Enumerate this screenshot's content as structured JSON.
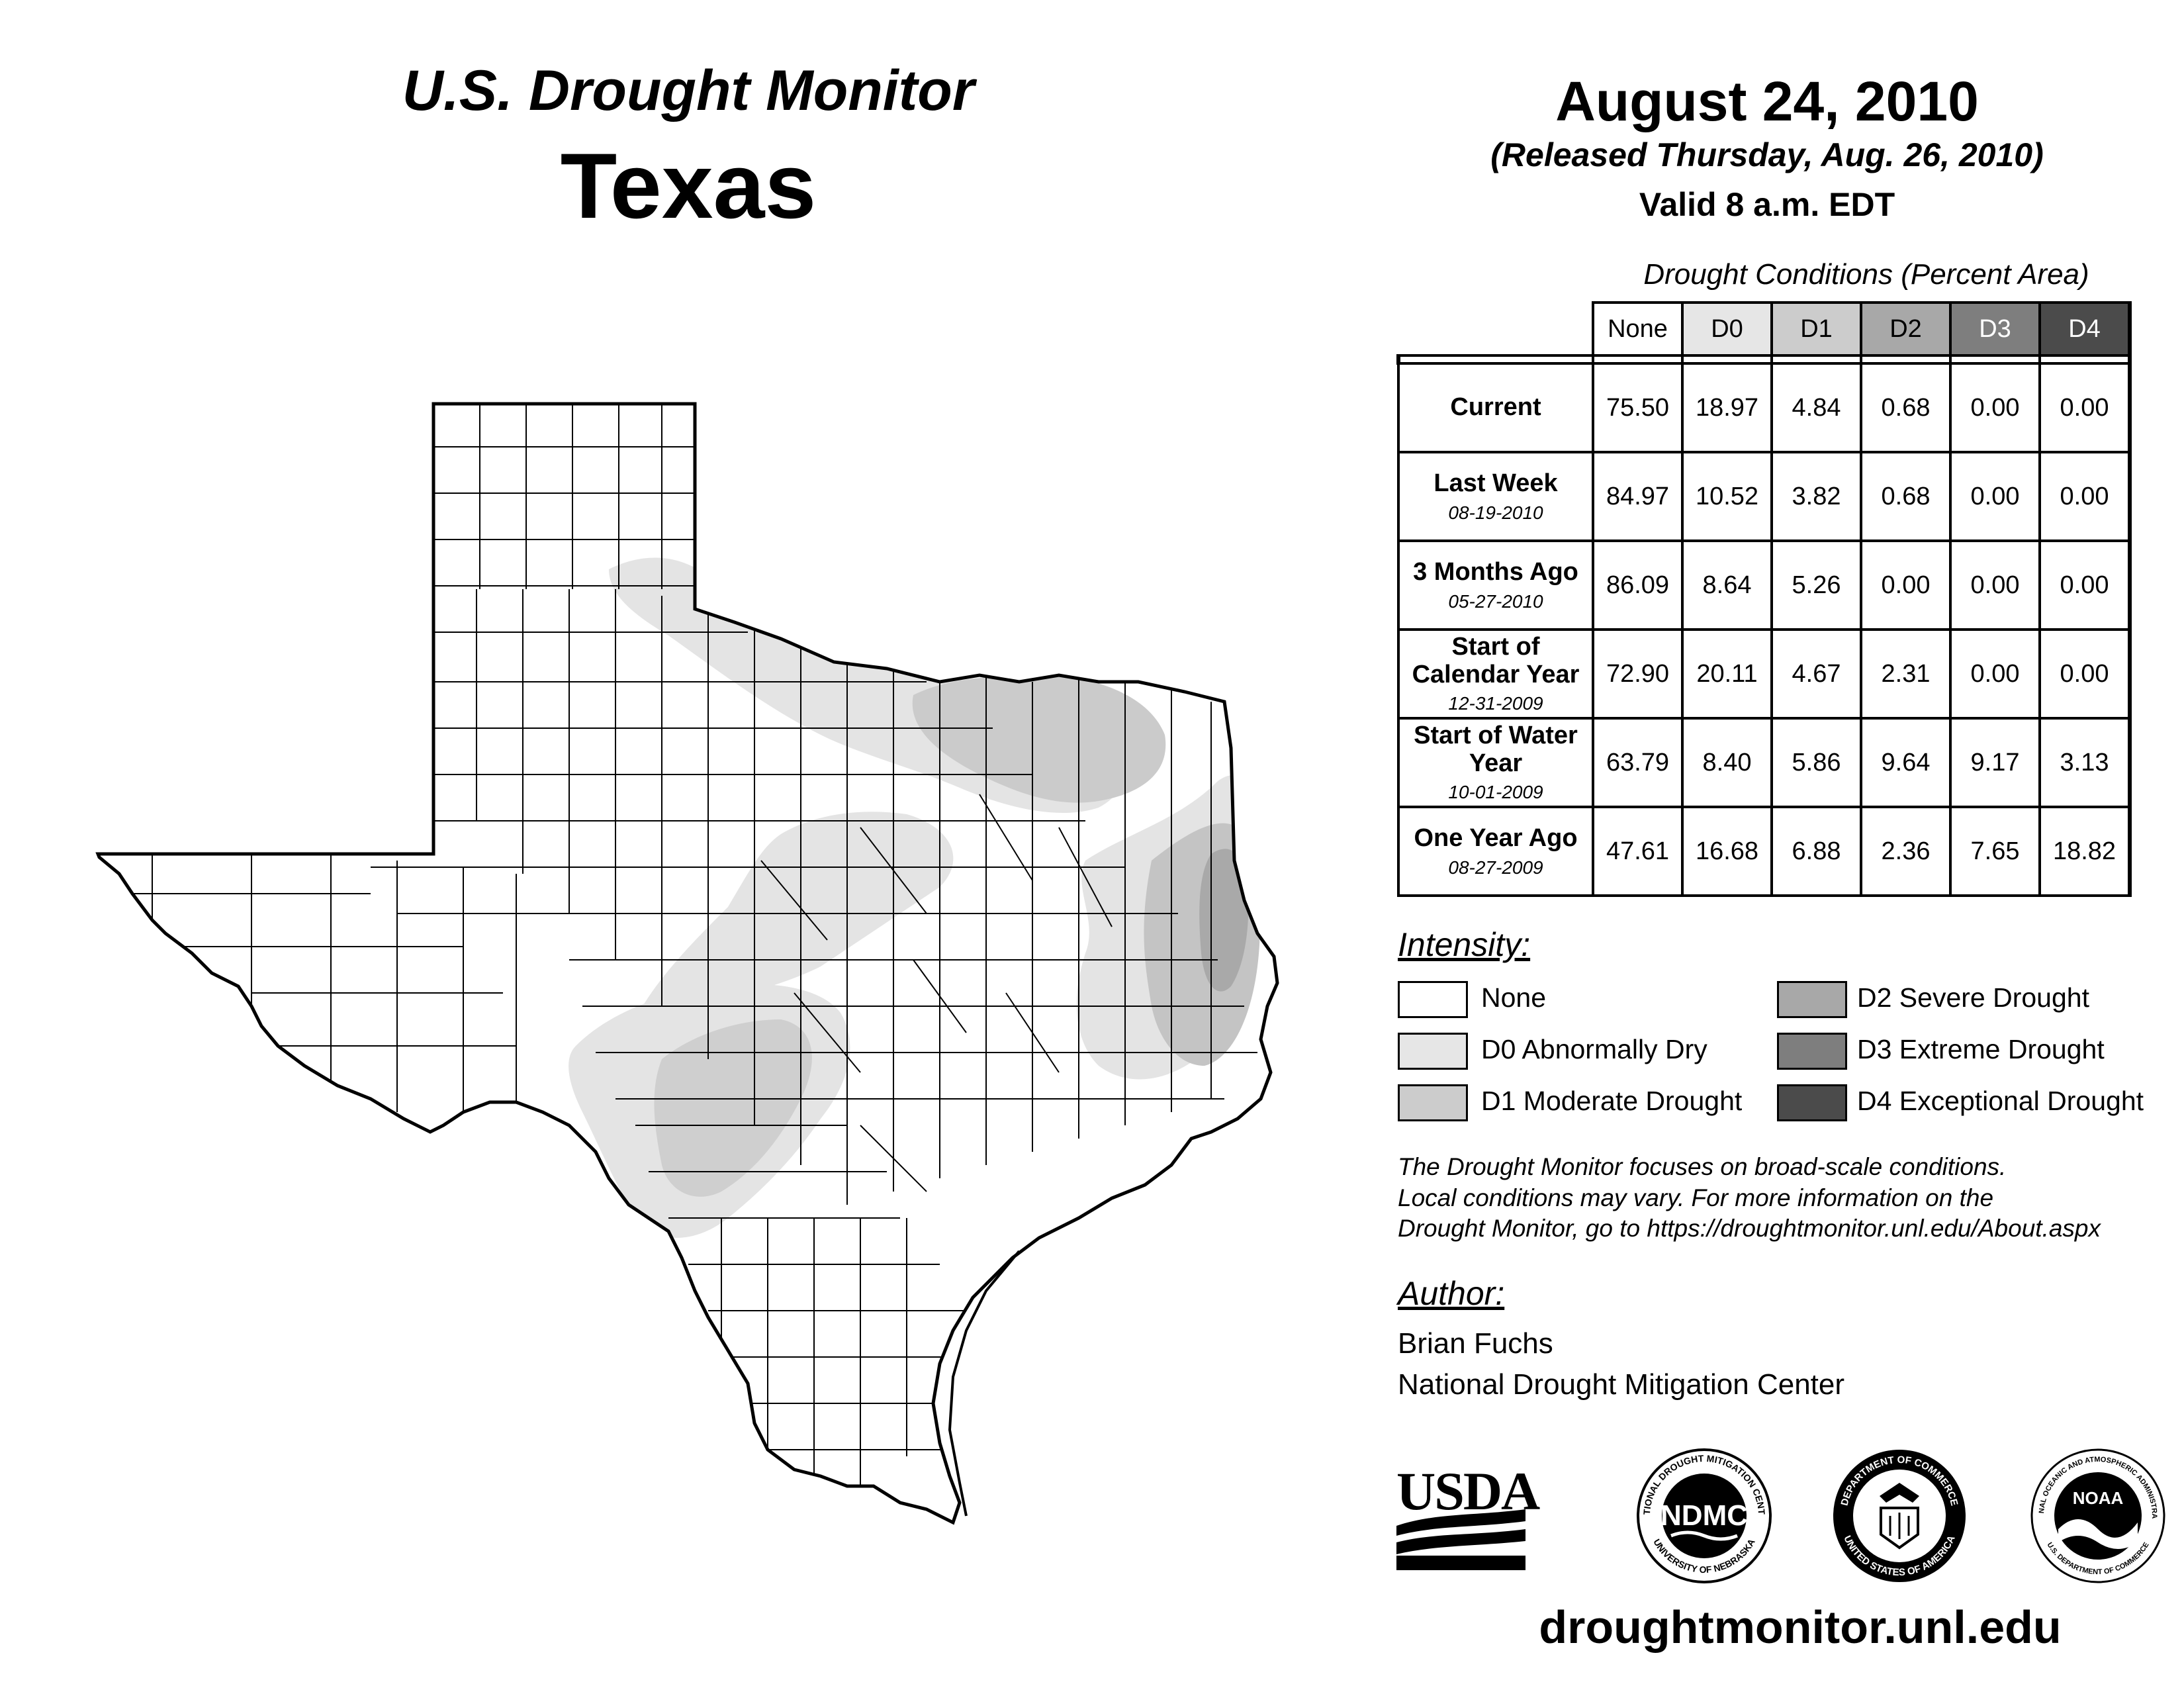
{
  "header": {
    "title_line1": "U.S. Drought Monitor",
    "title_line2": "Texas",
    "date": "August 24, 2010",
    "released": "(Released Thursday, Aug. 26, 2010)",
    "valid": "Valid 8 a.m. EDT"
  },
  "table": {
    "title": "Drought Conditions (Percent Area)",
    "columns": [
      "None",
      "D0",
      "D1",
      "D2",
      "D3",
      "D4"
    ],
    "rows": [
      {
        "label": "Current",
        "date": "",
        "values": [
          "75.50",
          "18.97",
          "4.84",
          "0.68",
          "0.00",
          "0.00"
        ]
      },
      {
        "label": "Last Week",
        "date": "08-19-2010",
        "values": [
          "84.97",
          "10.52",
          "3.82",
          "0.68",
          "0.00",
          "0.00"
        ]
      },
      {
        "label": "3 Months Ago",
        "date": "05-27-2010",
        "values": [
          "86.09",
          "8.64",
          "5.26",
          "0.00",
          "0.00",
          "0.00"
        ]
      },
      {
        "label": "Start of Calendar Year",
        "date": "12-31-2009",
        "values": [
          "72.90",
          "20.11",
          "4.67",
          "2.31",
          "0.00",
          "0.00"
        ]
      },
      {
        "label": "Start of Water Year",
        "date": "10-01-2009",
        "values": [
          "63.79",
          "8.40",
          "5.86",
          "9.64",
          "9.17",
          "3.13"
        ]
      },
      {
        "label": "One Year Ago",
        "date": "08-27-2009",
        "values": [
          "47.61",
          "16.68",
          "6.88",
          "2.36",
          "7.65",
          "18.82"
        ]
      }
    ]
  },
  "legend": {
    "title": "Intensity:",
    "items": [
      {
        "label": "None",
        "color": "#ffffff"
      },
      {
        "label": "D0 Abnormally Dry",
        "color": "#e6e6e6"
      },
      {
        "label": "D1 Moderate Drought",
        "color": "#cccccc"
      },
      {
        "label": "D2 Severe Drought",
        "color": "#a8a8a8"
      },
      {
        "label": "D3 Extreme Drought",
        "color": "#7e7e7e"
      },
      {
        "label": "D4 Exceptional Drought",
        "color": "#4b4b4b"
      }
    ]
  },
  "header_colors": [
    "#ffffff",
    "#e6e6e6",
    "#cccccc",
    "#a8a8a8",
    "#7e7e7e",
    "#4b4b4b"
  ],
  "disclaimer": {
    "line1": "The Drought Monitor focuses on broad-scale conditions.",
    "line2": "Local conditions may vary. For more information on the",
    "line3": "Drought Monitor, go to https://droughtmonitor.unl.edu/About.aspx"
  },
  "author": {
    "heading": "Author:",
    "name": "Brian Fuchs",
    "org": "National Drought Mitigation Center"
  },
  "logos": {
    "usda": "USDA",
    "ndmc": "NDMC",
    "ndmc_ring_top": "NATIONAL DROUGHT MITIGATION CENTER",
    "ndmc_ring_bottom": "UNIVERSITY OF NEBRASKA",
    "doc_ring_top": "DEPARTMENT OF COMMERCE",
    "doc_ring_bottom": "UNITED STATES OF AMERICA",
    "noaa": "NOAA",
    "noaa_ring_top": "NATIONAL OCEANIC AND ATMOSPHERIC ADMINISTRATION",
    "noaa_ring_bottom": "U.S. DEPARTMENT OF COMMERCE"
  },
  "footer_url": "droughtmonitor.unl.edu"
}
